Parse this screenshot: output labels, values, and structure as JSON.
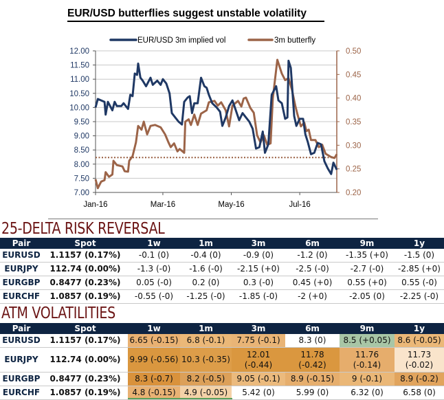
{
  "chart_data": {
    "type": "line",
    "title": "EUR/USD butterflies suggest unstable volatility",
    "xlabel": "",
    "ylabel": "",
    "y2label": "",
    "x_ticks": [
      "Jan-16",
      "Mar-16",
      "May-16",
      "Jul-16"
    ],
    "x_tick_dates": [
      "2016-01-01",
      "2016-03-01",
      "2016-05-01",
      "2016-07-01"
    ],
    "xlim": [
      "2016-01-01",
      "2016-08-03"
    ],
    "ylim": [
      7.0,
      12.0
    ],
    "y_ticks": [
      "7.00",
      "7.50",
      "8.00",
      "8.50",
      "9.00",
      "9.50",
      "10.00",
      "10.50",
      "11.00",
      "11.50",
      "12.00"
    ],
    "y2lim": [
      0.2,
      0.5
    ],
    "y2_ticks": [
      "0.20",
      "0.25",
      "0.30",
      "0.35",
      "0.40",
      "0.45",
      "0.50"
    ],
    "grid": "horizontal",
    "legend": "top",
    "series": [
      {
        "name": "EUR/USD 3m implied vol",
        "axis": "left",
        "color": "#1f3864",
        "points": [
          [
            "2016-01-01",
            10.0
          ],
          [
            "2016-01-03",
            10.3
          ],
          [
            "2016-01-09",
            10.2
          ],
          [
            "2016-01-10",
            9.75
          ],
          [
            "2016-01-12",
            10.2
          ],
          [
            "2016-01-16",
            9.9
          ],
          [
            "2016-01-18",
            10.2
          ],
          [
            "2016-01-20",
            10.05
          ],
          [
            "2016-01-24",
            10.05
          ],
          [
            "2016-01-26",
            10.15
          ],
          [
            "2016-01-30",
            9.95
          ],
          [
            "2016-02-01",
            10.45
          ],
          [
            "2016-02-03",
            10.4
          ],
          [
            "2016-02-05",
            11.2
          ],
          [
            "2016-02-07",
            11.15
          ],
          [
            "2016-02-08",
            11.55
          ],
          [
            "2016-02-10",
            11.05
          ],
          [
            "2016-02-12",
            10.95
          ],
          [
            "2016-02-15",
            10.75
          ],
          [
            "2016-02-19",
            11.05
          ],
          [
            "2016-02-21",
            10.8
          ],
          [
            "2016-02-25",
            10.95
          ],
          [
            "2016-02-28",
            10.8
          ],
          [
            "2016-03-01",
            11.0
          ],
          [
            "2016-03-04",
            10.85
          ],
          [
            "2016-03-07",
            10.5
          ],
          [
            "2016-03-09",
            9.8
          ],
          [
            "2016-03-12",
            9.65
          ],
          [
            "2016-03-15",
            9.5
          ],
          [
            "2016-03-18",
            9.4
          ],
          [
            "2016-03-20",
            10.2
          ],
          [
            "2016-03-23",
            10.35
          ],
          [
            "2016-03-25",
            10.4
          ],
          [
            "2016-03-27",
            9.8
          ],
          [
            "2016-03-29",
            10.15
          ],
          [
            "2016-04-01",
            10.15
          ],
          [
            "2016-04-04",
            11.05
          ],
          [
            "2016-04-07",
            10.75
          ],
          [
            "2016-04-09",
            10.7
          ],
          [
            "2016-04-11",
            10.45
          ],
          [
            "2016-04-14",
            10.15
          ],
          [
            "2016-04-18",
            10.0
          ],
          [
            "2016-04-21",
            9.85
          ],
          [
            "2016-04-23",
            9.35
          ],
          [
            "2016-04-26",
            9.65
          ],
          [
            "2016-04-29",
            10.05
          ],
          [
            "2016-05-02",
            10.25
          ],
          [
            "2016-05-05",
            9.9
          ],
          [
            "2016-05-08",
            9.55
          ],
          [
            "2016-05-11",
            9.8
          ],
          [
            "2016-05-14",
            9.65
          ],
          [
            "2016-05-17",
            9.5
          ],
          [
            "2016-05-20",
            9.25
          ],
          [
            "2016-05-23",
            8.55
          ],
          [
            "2016-05-26",
            8.6
          ],
          [
            "2016-05-29",
            9.15
          ],
          [
            "2016-05-31",
            8.4
          ],
          [
            "2016-06-03",
            8.7
          ],
          [
            "2016-06-06",
            10.45
          ],
          [
            "2016-06-10",
            10.75
          ],
          [
            "2016-06-12",
            10.25
          ],
          [
            "2016-06-15",
            10.15
          ],
          [
            "2016-06-18",
            9.6
          ],
          [
            "2016-06-20",
            9.65
          ],
          [
            "2016-06-21",
            11.65
          ],
          [
            "2016-06-23",
            11.4
          ],
          [
            "2016-06-26",
            9.7
          ],
          [
            "2016-06-28",
            9.35
          ],
          [
            "2016-07-01",
            9.6
          ],
          [
            "2016-07-04",
            9.6
          ],
          [
            "2016-07-06",
            9.05
          ],
          [
            "2016-07-08",
            8.8
          ],
          [
            "2016-07-11",
            8.35
          ],
          [
            "2016-07-14",
            8.4
          ],
          [
            "2016-07-17",
            8.75
          ],
          [
            "2016-07-20",
            8.7
          ],
          [
            "2016-07-23",
            8.1
          ],
          [
            "2016-07-26",
            7.85
          ],
          [
            "2016-07-29",
            7.65
          ],
          [
            "2016-07-31",
            8.05
          ],
          [
            "2016-08-03",
            7.8
          ]
        ]
      },
      {
        "name": "3m butterfly",
        "axis": "right",
        "color": "#9c6448",
        "points": [
          [
            "2016-01-01",
            0.228
          ],
          [
            "2016-01-03",
            0.209
          ],
          [
            "2016-01-06",
            0.223
          ],
          [
            "2016-01-09",
            0.226
          ],
          [
            "2016-01-10",
            0.243
          ],
          [
            "2016-01-13",
            0.233
          ],
          [
            "2016-01-16",
            0.238
          ],
          [
            "2016-01-17",
            0.267
          ],
          [
            "2016-01-20",
            0.258
          ],
          [
            "2016-01-25",
            0.255
          ],
          [
            "2016-01-27",
            0.245
          ],
          [
            "2016-01-30",
            0.244
          ],
          [
            "2016-01-31",
            0.267
          ],
          [
            "2016-02-03",
            0.277
          ],
          [
            "2016-02-06",
            0.306
          ],
          [
            "2016-02-08",
            0.341
          ],
          [
            "2016-02-11",
            0.333
          ],
          [
            "2016-02-13",
            0.35
          ],
          [
            "2016-02-16",
            0.323
          ],
          [
            "2016-02-19",
            0.341
          ],
          [
            "2016-02-23",
            0.343
          ],
          [
            "2016-02-28",
            0.338
          ],
          [
            "2016-03-03",
            0.323
          ],
          [
            "2016-03-06",
            0.306
          ],
          [
            "2016-03-08",
            0.296
          ],
          [
            "2016-03-11",
            0.304
          ],
          [
            "2016-03-14",
            0.287
          ],
          [
            "2016-03-16",
            0.292
          ],
          [
            "2016-03-20",
            0.284
          ],
          [
            "2016-03-21",
            0.35
          ],
          [
            "2016-03-24",
            0.355
          ],
          [
            "2016-03-26",
            0.343
          ],
          [
            "2016-03-29",
            0.365
          ],
          [
            "2016-04-01",
            0.343
          ],
          [
            "2016-04-04",
            0.367
          ],
          [
            "2016-04-09",
            0.374
          ],
          [
            "2016-04-11",
            0.391
          ],
          [
            "2016-04-16",
            0.394
          ],
          [
            "2016-04-19",
            0.384
          ],
          [
            "2016-04-22",
            0.391
          ],
          [
            "2016-04-26",
            0.374
          ],
          [
            "2016-04-29",
            0.34
          ],
          [
            "2016-05-02",
            0.384
          ],
          [
            "2016-05-07",
            0.394
          ],
          [
            "2016-05-10",
            0.382
          ],
          [
            "2016-05-12",
            0.399
          ],
          [
            "2016-05-14",
            0.401
          ],
          [
            "2016-05-18",
            0.379
          ],
          [
            "2016-05-21",
            0.369
          ],
          [
            "2016-05-24",
            0.321
          ],
          [
            "2016-05-27",
            0.306
          ],
          [
            "2016-05-30",
            0.321
          ],
          [
            "2016-06-02",
            0.301
          ],
          [
            "2016-06-05",
            0.304
          ],
          [
            "2016-06-07",
            0.399
          ],
          [
            "2016-06-11",
            0.481
          ],
          [
            "2016-06-15",
            0.452
          ],
          [
            "2016-06-18",
            0.438
          ],
          [
            "2016-06-21",
            0.442
          ],
          [
            "2016-06-24",
            0.418
          ],
          [
            "2016-06-27",
            0.384
          ],
          [
            "2016-06-29",
            0.365
          ],
          [
            "2016-07-02",
            0.34
          ],
          [
            "2016-07-05",
            0.348
          ],
          [
            "2016-07-07",
            0.33
          ],
          [
            "2016-07-09",
            0.333
          ],
          [
            "2016-07-11",
            0.311
          ],
          [
            "2016-07-15",
            0.311
          ],
          [
            "2016-07-18",
            0.296
          ],
          [
            "2016-07-21",
            0.301
          ],
          [
            "2016-07-24",
            0.282
          ],
          [
            "2016-07-29",
            0.275
          ],
          [
            "2016-08-01",
            0.273
          ],
          [
            "2016-08-03",
            0.281
          ]
        ]
      }
    ],
    "reference_line": {
      "axis": "right",
      "value": 0.274,
      "style": "dotted",
      "color": "#9c6448"
    }
  },
  "risk_reversal": {
    "title": "25-DELTA RISK REVERSAL",
    "headers": [
      "Pair",
      "Spot",
      "1w",
      "1m",
      "3m",
      "6m",
      "9m",
      "1y"
    ],
    "rows": [
      {
        "pair": "EURUSD",
        "spot": "1.1157 (0.17%)",
        "values": [
          "-0.1 (0)",
          "-0.4 (0)",
          "-0.9 (0)",
          "-1.2 (0)",
          "-1.35 (+0)",
          "-1.5 (0)"
        ]
      },
      {
        "pair": "EURJPY",
        "spot": "112.74 (0.00%)",
        "values": [
          "-1.3 (-0)",
          "-1.6 (-0)",
          "-2.15 (+0)",
          "-2.5 (-0)",
          "-2.7 (-0)",
          "-2.85 (+0)"
        ]
      },
      {
        "pair": "EURGBP",
        "spot": "0.8477 (0.23%)",
        "values": [
          "0.05 (-0)",
          "0.2 (0)",
          "0.3 (-0)",
          "0.45 (+0)",
          "0.55 (+0)",
          "0.55 (-0)"
        ]
      },
      {
        "pair": "EURCHF",
        "spot": "1.0857 (0.19%)",
        "values": [
          "-0.55 (-0)",
          "-1.25 (-0)",
          "-1.85 (-0)",
          "-2 (+0)",
          "-2.05 (0)",
          "-2.25 (-0)"
        ]
      }
    ]
  },
  "atm_volatilities": {
    "title": "ATM VOLATILITIES",
    "headers": [
      "Pair",
      "Spot",
      "1w",
      "1m",
      "3m",
      "6m",
      "9m",
      "1y"
    ],
    "rows": [
      {
        "pair": "EURUSD",
        "spot": "1.1157 (0.17%)",
        "values": [
          "6.65 (-0.15)",
          "6.8 (-0.1)",
          "7.75 (-0.1)",
          "8.3 (0)",
          "8.5 (+0.05)",
          "8.6 (-0.05)"
        ],
        "colors": [
          "#e9b172",
          "#ebb878",
          "#e9b476",
          "#ffffff",
          "#a8c6a6",
          "#ebb878"
        ]
      },
      {
        "pair": "EURJPY",
        "spot": "112.74 (0.00%)",
        "values": [
          "9.99 (-0.56)",
          "10.3 (-0.35)",
          "12.01 (-0.44)",
          "11.78 (-0.42)",
          "11.76 (-0.14)",
          "11.73 (-0.02)"
        ],
        "colors": [
          "#da973f",
          "#dd9d49",
          "#da973f",
          "#da973f",
          "#e6ad6c",
          "#f9e4cb"
        ]
      },
      {
        "pair": "EURGBP",
        "spot": "0.8477 (0.23%)",
        "values": [
          "8.3 (-0.7)",
          "8.2 (-0.5)",
          "9.05 (-0.1)",
          "8.9 (-0.15)",
          "9 (-0.1)",
          "8.9 (-0.2)"
        ],
        "colors": [
          "#d9923c",
          "#dca059",
          "#ebba7d",
          "#e6ae6d",
          "#eab777",
          "#e1a45d"
        ]
      },
      {
        "pair": "EURCHF",
        "spot": "1.0857 (0.19%)",
        "values": [
          "4.8 (-0.15)",
          "4.9 (-0.05)",
          "5.42 (0)",
          "5.99 (0)",
          "6.32 (0)",
          "6.58 (0)"
        ],
        "colors": [
          "#e9b274",
          "#f4d2a8",
          "#ffffff",
          "#ffffff",
          "#ffffff",
          "#ffffff"
        ]
      }
    ]
  }
}
